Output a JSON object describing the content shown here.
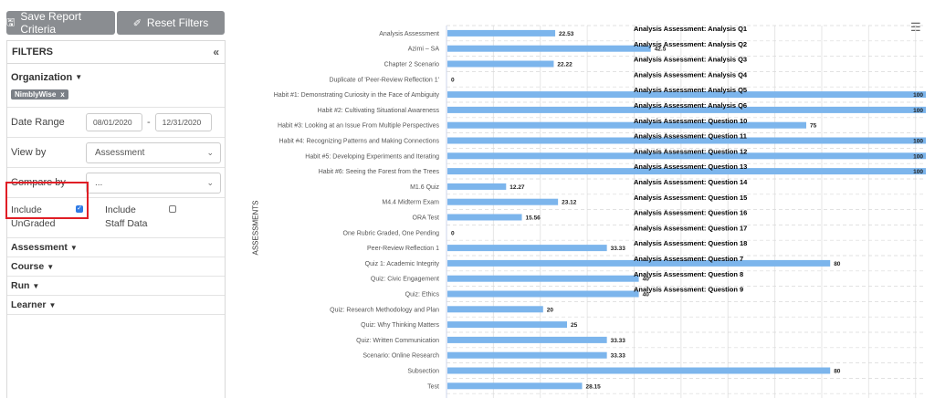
{
  "toolbar": {
    "save_label": "Save Report Criteria",
    "reset_label": "Reset Filters"
  },
  "filters": {
    "title": "FILTERS",
    "collapse_glyph": "«",
    "organization_label": "Organization",
    "organization_chip": "NimblyWise",
    "chip_remove": "x",
    "date_range_label": "Date Range",
    "date_from": "08/01/2020",
    "date_to": "12/31/2020",
    "view_by_label": "View by",
    "view_by_value": "Assessment",
    "compare_by_label": "Compare by",
    "compare_by_value": "...",
    "include_ungraded_line1": "Include",
    "include_ungraded_line2": "UnGraded",
    "include_ungraded_checked": true,
    "include_staff_line1": "Include",
    "include_staff_line2": "Staff Data",
    "include_staff_checked": false,
    "sections": [
      "Assessment",
      "Course",
      "Run",
      "Learner"
    ]
  },
  "colors": {
    "bar": "#7cb5ec",
    "highlight": "#e01e26",
    "button": "#8a8d91",
    "checkbox": "#2f7be5"
  },
  "chart_data": {
    "type": "bar",
    "orientation": "horizontal",
    "ylabel": "ASSESSMENTS",
    "xlim": [
      0,
      100
    ],
    "grid": true,
    "categories": [
      "Analysis Assessment",
      "Azimi – SA",
      "Chapter 2 Scenario",
      "Duplicate of 'Peer-Review Reflection 1'",
      "Habit #1: Demonstrating Curiosity in the Face of Ambiguity",
      "Habit #2: Cultivating Situational Awareness",
      "Habit #3: Looking at an Issue From Multiple Perspectives",
      "Habit #4: Recognizing Patterns and Making Connections",
      "Habit #5: Developing Experiments and Iterating",
      "Habit #6: Seeing the Forest from the Trees",
      "M1.6 Quiz",
      "M4.4 Midterm Exam",
      "ORA Test",
      "One Rubric Graded, One Pending",
      "Peer-Review Reflection 1",
      "Quiz 1: Academic Integrity",
      "Quiz: Civic Engagement",
      "Quiz: Ethics",
      "Quiz: Research Methodology and Plan",
      "Quiz: Why Thinking Matters",
      "Quiz: Written Communication",
      "Scenario: Online Research",
      "Subsection",
      "Test"
    ],
    "values": [
      22.53,
      42.5,
      22.22,
      0,
      100,
      100,
      75,
      100,
      100,
      100,
      12.27,
      23.12,
      15.56,
      0,
      33.33,
      80,
      40,
      40,
      20,
      25,
      33.33,
      33.33,
      80,
      28.15
    ],
    "data_labels": [
      "22.53",
      "42.5",
      "22.22",
      "0",
      "100",
      "100",
      "75",
      "100",
      "100",
      "100",
      "12.27",
      "23.12",
      "15.56",
      "0",
      "33.33",
      "80",
      "40",
      "40",
      "20",
      "25",
      "33.33",
      "33.33",
      "80",
      "28.15"
    ],
    "overlay_labels": [
      "Analysis Assessment: Analysis Q1",
      "Analysis Assessment: Analysis Q2",
      "Analysis Assessment: Analysis Q3",
      "Analysis Assessment: Analysis Q4",
      "Analysis Assessment: Analysis Q5",
      "Analysis Assessment: Analysis Q6",
      "Analysis Assessment: Question 10",
      "Analysis Assessment: Question 11",
      "Analysis Assessment: Question 12",
      "Analysis Assessment: Question 13",
      "Analysis Assessment: Question 14",
      "Analysis Assessment: Question 15",
      "Analysis Assessment: Question 16",
      "Analysis Assessment: Question 17",
      "Analysis Assessment: Question 18",
      "Analysis Assessment: Question 7",
      "Analysis Assessment: Question 8",
      "Analysis Assessment: Question 9"
    ]
  }
}
